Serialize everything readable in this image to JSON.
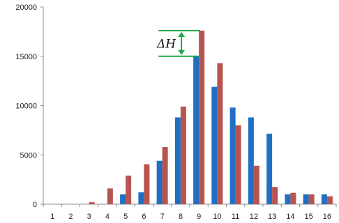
{
  "chart_data": {
    "type": "bar",
    "categories": [
      "1",
      "2",
      "3",
      "4",
      "5",
      "6",
      "7",
      "8",
      "9",
      "10",
      "11",
      "12",
      "13",
      "14",
      "15",
      "16"
    ],
    "series": [
      {
        "values": [
          0,
          0,
          0,
          0,
          1000,
          1200,
          4400,
          8800,
          15000,
          11900,
          9800,
          8800,
          7150,
          1000,
          1000,
          1000
        ],
        "color": "#1f6fc5"
      },
      {
        "values": [
          0,
          0,
          200,
          1600,
          2900,
          4050,
          5800,
          9900,
          17600,
          14300,
          8000,
          3900,
          1750,
          1150,
          1000,
          800
        ],
        "color": "#b85450"
      }
    ],
    "ylim": [
      0,
      20000
    ],
    "yticks": [
      0,
      5000,
      10000,
      15000,
      20000
    ],
    "grid": false,
    "annotation": {
      "label": "ΔH",
      "from_value": 15000,
      "to_value": 17600,
      "category": "9",
      "color": "#22a84a"
    }
  }
}
